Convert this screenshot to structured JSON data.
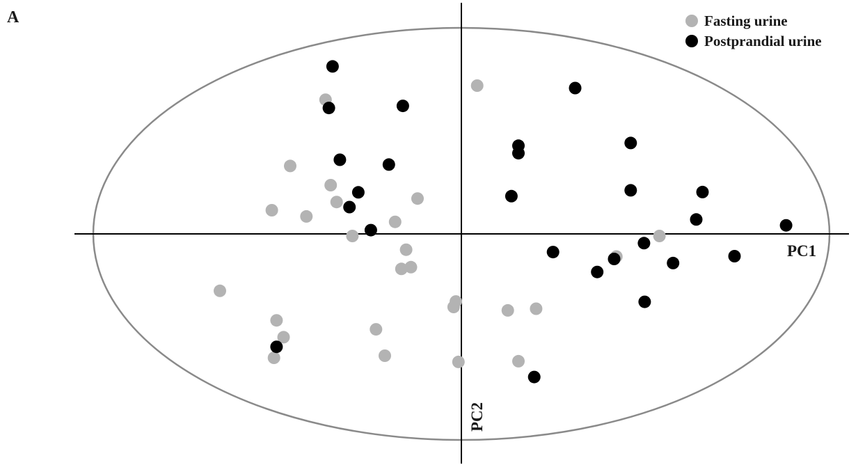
{
  "chart_data": {
    "type": "scatter",
    "panel_label": "A",
    "xlabel": "PC1",
    "ylabel": "PC2",
    "xlim": [
      -10,
      10
    ],
    "ylim": [
      -6,
      6
    ],
    "confidence_ellipse": true,
    "grid": false,
    "legend_position": "top-right",
    "series": [
      {
        "name": "Fasting urine",
        "color": "#b3b3b3",
        "points": [
          [
            0.43,
            4.32
          ],
          [
            -3.69,
            3.91
          ],
          [
            -4.65,
            1.98
          ],
          [
            -3.55,
            1.42
          ],
          [
            -5.15,
            0.69
          ],
          [
            -4.21,
            0.51
          ],
          [
            -3.39,
            0.93
          ],
          [
            -1.19,
            1.03
          ],
          [
            -1.8,
            0.35
          ],
          [
            -2.96,
            -0.06
          ],
          [
            -1.5,
            -0.46
          ],
          [
            -1.37,
            -0.97
          ],
          [
            -1.63,
            -1.02
          ],
          [
            -6.56,
            -1.66
          ],
          [
            -5.02,
            -2.52
          ],
          [
            -4.83,
            -3.01
          ],
          [
            -5.09,
            -3.61
          ],
          [
            -2.32,
            -2.78
          ],
          [
            -2.08,
            -3.55
          ],
          [
            -0.15,
            -1.97
          ],
          [
            -0.21,
            -2.13
          ],
          [
            1.26,
            -2.23
          ],
          [
            2.03,
            -2.18
          ],
          [
            -0.08,
            -3.73
          ],
          [
            1.55,
            -3.71
          ],
          [
            4.21,
            -0.66
          ],
          [
            5.38,
            -0.06
          ]
        ]
      },
      {
        "name": "Postprandial urine",
        "color": "#000000",
        "points": [
          [
            -3.5,
            4.88
          ],
          [
            -3.6,
            3.67
          ],
          [
            -1.59,
            3.73
          ],
          [
            3.09,
            4.25
          ],
          [
            1.55,
            2.57
          ],
          [
            1.55,
            2.35
          ],
          [
            4.6,
            2.65
          ],
          [
            -3.3,
            2.16
          ],
          [
            -1.97,
            2.02
          ],
          [
            -2.8,
            1.21
          ],
          [
            -3.04,
            0.78
          ],
          [
            -2.46,
            0.11
          ],
          [
            1.36,
            1.1
          ],
          [
            4.6,
            1.27
          ],
          [
            6.55,
            1.22
          ],
          [
            6.38,
            0.42
          ],
          [
            8.82,
            0.25
          ],
          [
            2.49,
            -0.53
          ],
          [
            4.96,
            -0.27
          ],
          [
            4.15,
            -0.73
          ],
          [
            3.69,
            -1.11
          ],
          [
            5.75,
            -0.85
          ],
          [
            7.42,
            -0.65
          ],
          [
            4.98,
            -1.98
          ],
          [
            -5.02,
            -3.29
          ],
          [
            1.98,
            -4.17
          ]
        ]
      }
    ]
  }
}
